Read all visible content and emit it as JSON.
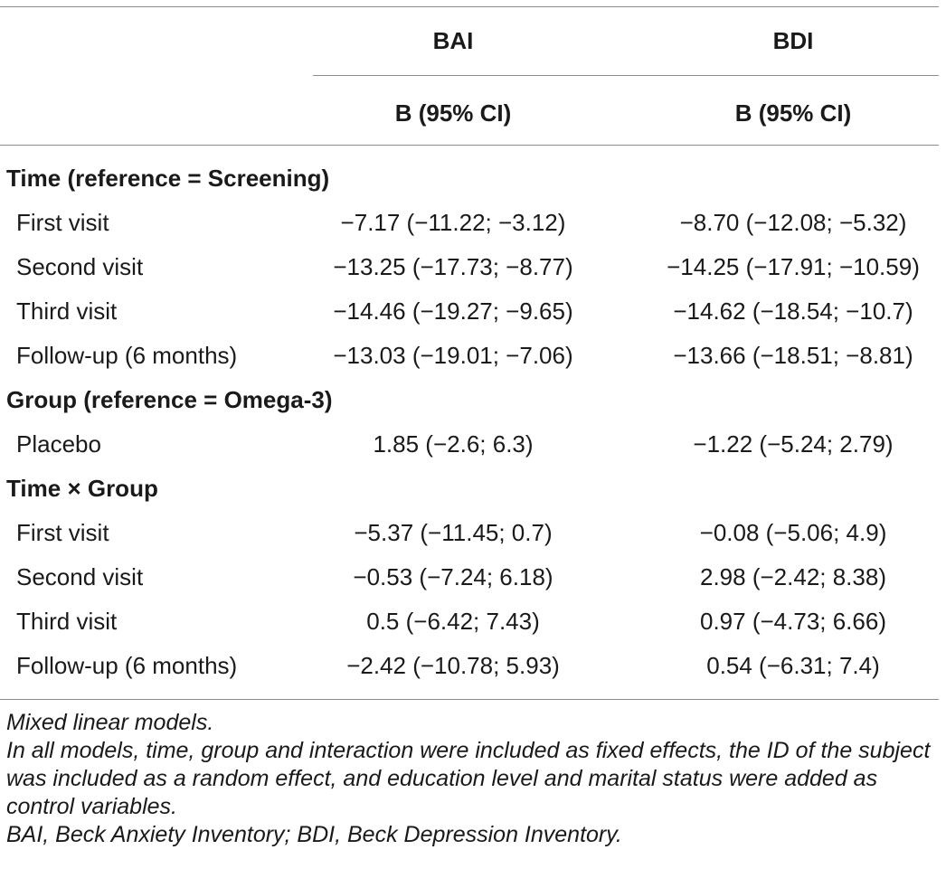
{
  "header": {
    "col1": "BAI",
    "col2": "BDI",
    "sub1": "B (95% CI)",
    "sub2": "B (95% CI)"
  },
  "sections": [
    {
      "title": "Time (reference = Screening)",
      "rows": [
        {
          "label": "First visit",
          "bai": "−7.17 (−11.22; −3.12)",
          "bdi": "−8.70 (−12.08; −5.32)"
        },
        {
          "label": "Second visit",
          "bai": "−13.25 (−17.73; −8.77)",
          "bdi": "−14.25 (−17.91; −10.59)"
        },
        {
          "label": "Third visit",
          "bai": "−14.46 (−19.27; −9.65)",
          "bdi": "−14.62 (−18.54; −10.7)"
        },
        {
          "label": "Follow-up (6 months)",
          "bai": "−13.03 (−19.01; −7.06)",
          "bdi": "−13.66 (−18.51; −8.81)"
        }
      ]
    },
    {
      "title": "Group (reference = Omega-3)",
      "rows": [
        {
          "label": "Placebo",
          "bai": "1.85 (−2.6; 6.3)",
          "bdi": "−1.22 (−5.24; 2.79)"
        }
      ]
    },
    {
      "title": "Time × Group",
      "rows": [
        {
          "label": "First visit",
          "bai": "−5.37 (−11.45; 0.7)",
          "bdi": "−0.08 (−5.06; 4.9)"
        },
        {
          "label": "Second visit",
          "bai": "−0.53 (−7.24; 6.18)",
          "bdi": "2.98 (−2.42; 8.38)"
        },
        {
          "label": "Third visit",
          "bai": "0.5 (−6.42; 7.43)",
          "bdi": "0.97 (−4.73; 6.66)"
        },
        {
          "label": "Follow-up (6 months)",
          "bai": "−2.42 (−10.78; 5.93)",
          "bdi": "0.54 (−6.31; 7.4)"
        }
      ]
    }
  ],
  "footnotes": {
    "line1": "Mixed linear models.",
    "line2": "In all models, time, group and interaction were included as fixed effects, the ID of the subject was included as a random effect, and education level and marital status were added as control variables.",
    "line3": "BAI, Beck Anxiety Inventory; BDI, Beck Depression Inventory."
  }
}
